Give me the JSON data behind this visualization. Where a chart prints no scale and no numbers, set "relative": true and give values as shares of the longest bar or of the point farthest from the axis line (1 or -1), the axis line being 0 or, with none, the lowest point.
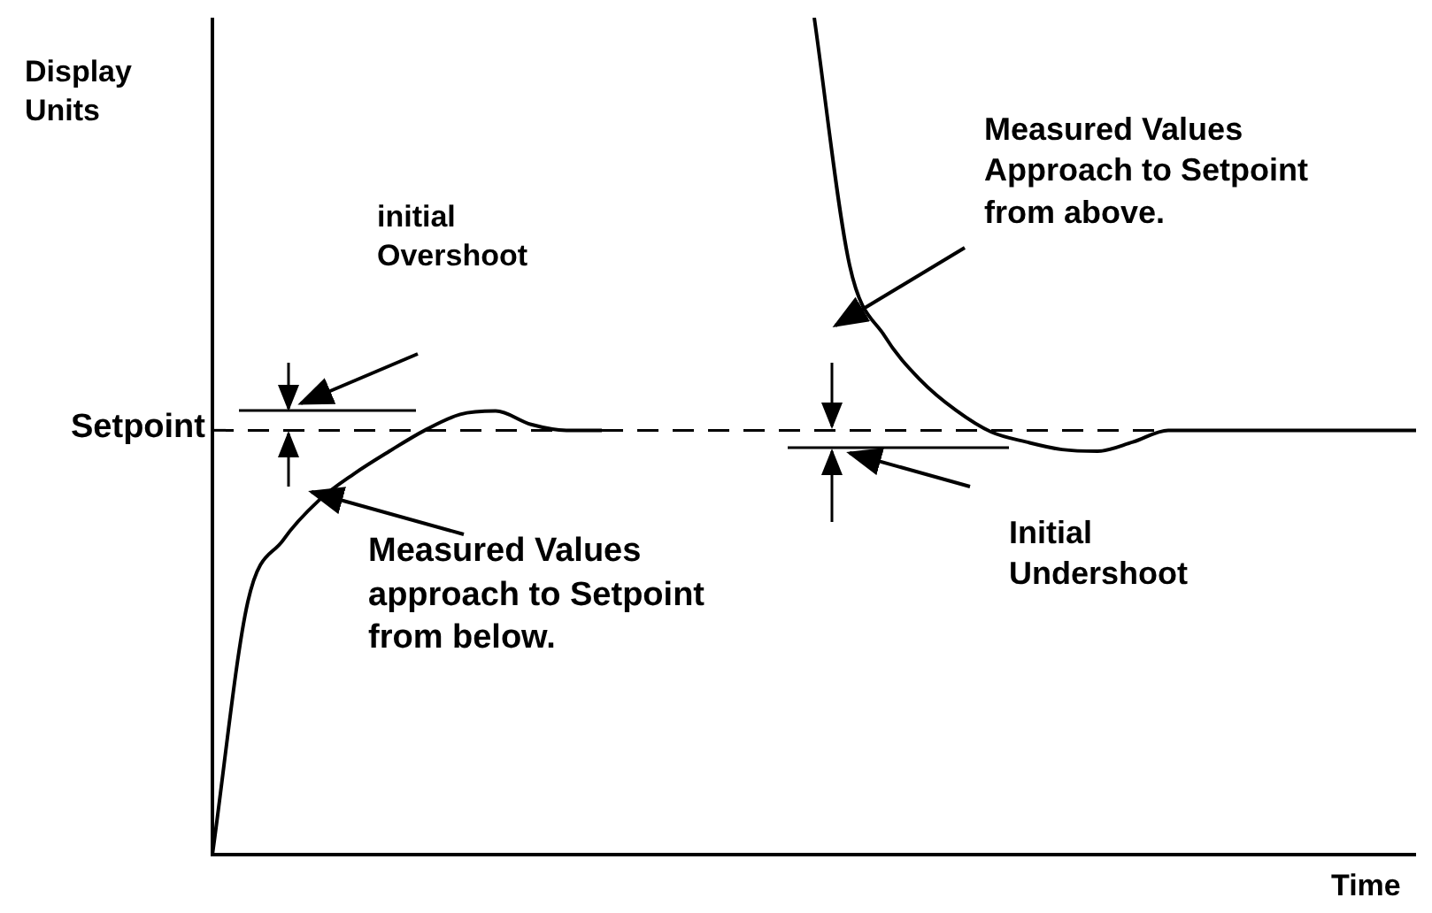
{
  "chart_data": {
    "type": "line",
    "relative": true,
    "xlabel": "Time",
    "ylabel": "Display Units",
    "marker": "none",
    "categories": [
      null,
      null,
      null,
      null,
      null,
      null,
      null,
      null,
      null,
      null,
      null,
      null,
      null,
      null,
      null,
      null,
      null,
      null,
      null,
      null,
      null,
      null,
      null,
      null,
      null,
      null,
      null,
      null,
      null,
      null,
      null,
      null,
      null,
      null,
      null
    ],
    "series": [
      {
        "color": "#000000",
        "values": [
          0,
          0.302,
          0.376,
          0.423,
          0.455,
          0.482,
          0.507,
          0.526,
          0.53,
          0.514,
          0.507,
          0.507,
          null,
          null,
          null,
          null,
          null,
          null,
          null,
          null,
          null,
          null,
          null,
          null,
          null,
          null,
          null,
          null,
          null,
          null,
          null,
          null,
          null,
          null,
          null
        ]
      },
      {
        "color": "#000000",
        "values": [
          null,
          null,
          null,
          null,
          null,
          null,
          null,
          null,
          null,
          null,
          null,
          null,
          null,
          null,
          null,
          null,
          null,
          1,
          0.704,
          0.619,
          0.567,
          0.531,
          0.505,
          0.493,
          0.484,
          0.482,
          0.493,
          0.507,
          0.507,
          0.507,
          0.507,
          0.507,
          0.507,
          0.507,
          0.507
        ]
      }
    ],
    "ref_lines": [
      {
        "axis": "y",
        "value": 0.507,
        "label": "Setpoint",
        "line_style": "dashed",
        "color": "#000000"
      }
    ],
    "annotations": [
      "initial Overshoot",
      "Measured Values approach to Setpoint from below.",
      "Measured Values Approach to Setpoint from above.",
      "Initial Undershoot"
    ]
  }
}
